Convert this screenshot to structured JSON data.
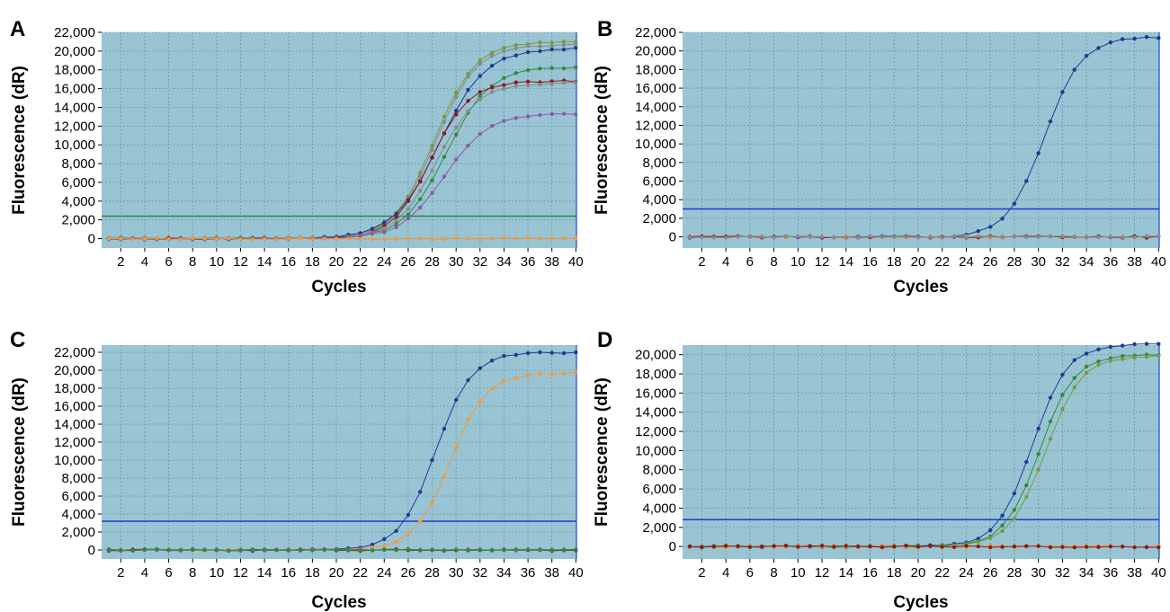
{
  "colors": {
    "plot_bg": "#99c4d4",
    "grid": "#5f8899",
    "blue": "#1f3a8f",
    "orange": "#f2993a",
    "dark_red": "#8b1a1a",
    "green": "#2e8b3a",
    "olive": "#7a9a3a",
    "purple": "#8a5aa8",
    "gray": "#8a8a8a",
    "threshold_green": "#2a8a3a",
    "threshold_blue": "#1f3acc",
    "right_border": "#3a6adc"
  },
  "chart_data": [
    {
      "panel": "A",
      "type": "line",
      "xlabel": "Cycles",
      "ylabel": "Fluorescence (dR)",
      "xlim": [
        1,
        40
      ],
      "ylim": [
        -1000,
        22000
      ],
      "x_ticks": [
        2,
        4,
        6,
        8,
        10,
        12,
        14,
        16,
        18,
        20,
        22,
        24,
        26,
        28,
        30,
        32,
        34,
        36,
        38,
        40
      ],
      "y_ticks": [
        "0",
        "2,000",
        "4,000",
        "6,000",
        "8,000",
        "10,000",
        "12,000",
        "14,000",
        "16,000",
        "18,000",
        "20,000",
        "22,000"
      ],
      "y_tick_values": [
        0,
        2000,
        4000,
        6000,
        8000,
        10000,
        12000,
        14000,
        16000,
        18000,
        20000,
        22000
      ],
      "threshold": 2400,
      "threshold_color": "threshold_green",
      "series": [
        {
          "color": "olive",
          "plateau": 21000,
          "midpoint": 28.2,
          "slope": 1.7
        },
        {
          "color": "gray",
          "plateau": 20700,
          "midpoint": 28.3,
          "slope": 1.7
        },
        {
          "color": "blue",
          "plateau": 20300,
          "midpoint": 28.6,
          "slope": 1.9
        },
        {
          "color": "green",
          "plateau": 18300,
          "midpoint": 29.2,
          "slope": 1.8
        },
        {
          "color": "dark_red",
          "plateau": 16800,
          "midpoint": 27.9,
          "slope": 1.6
        },
        {
          "color": "gray",
          "plateau": 16600,
          "midpoint": 28.4,
          "slope": 1.7
        },
        {
          "color": "purple",
          "plateau": 13300,
          "midpoint": 29.0,
          "slope": 1.8
        },
        {
          "color": "orange",
          "plateau": 0,
          "midpoint": 30,
          "slope": 2
        }
      ]
    },
    {
      "panel": "B",
      "type": "line",
      "xlabel": "Cycles",
      "ylabel": "Fluorescence (dR)",
      "xlim": [
        1,
        40
      ],
      "ylim": [
        -1200,
        22000
      ],
      "x_ticks": [
        2,
        4,
        6,
        8,
        10,
        12,
        14,
        16,
        18,
        20,
        22,
        24,
        26,
        28,
        30,
        32,
        34,
        36,
        38,
        40
      ],
      "y_ticks": [
        "0",
        "2,000",
        "4,000",
        "6,000",
        "8,000",
        "10,000",
        "12,000",
        "14,000",
        "16,000",
        "18,000",
        "20,000",
        "22,000"
      ],
      "y_tick_values": [
        0,
        2000,
        4000,
        6000,
        8000,
        10000,
        12000,
        14000,
        16000,
        18000,
        20000,
        22000
      ],
      "threshold": 3000,
      "threshold_color": "threshold_blue",
      "series": [
        {
          "color": "blue",
          "plateau": 21500,
          "midpoint": 30.5,
          "slope": 1.55
        },
        {
          "color": "orange",
          "plateau": 0,
          "midpoint": 30,
          "slope": 2
        },
        {
          "color": "dark_red",
          "plateau": 0,
          "midpoint": 30,
          "slope": 2
        },
        {
          "color": "gray",
          "plateau": 0,
          "midpoint": 30,
          "slope": 2
        }
      ]
    },
    {
      "panel": "C",
      "type": "line",
      "xlabel": "Cycles",
      "ylabel": "Fluorescence (dR)",
      "xlim": [
        1,
        40
      ],
      "ylim": [
        -1000,
        22800
      ],
      "x_ticks": [
        2,
        4,
        6,
        8,
        10,
        12,
        14,
        16,
        18,
        20,
        22,
        24,
        26,
        28,
        30,
        32,
        34,
        36,
        38,
        40
      ],
      "y_ticks": [
        "0",
        "2,000",
        "4,000",
        "6,000",
        "8,000",
        "10,000",
        "12,000",
        "14,000",
        "16,000",
        "18,000",
        "20,000",
        "22,000"
      ],
      "y_tick_values": [
        0,
        2000,
        4000,
        6000,
        8000,
        10000,
        12000,
        14000,
        16000,
        18000,
        20000,
        22000
      ],
      "threshold": 3200,
      "threshold_color": "threshold_blue",
      "series": [
        {
          "color": "blue",
          "plateau": 22000,
          "midpoint": 28.3,
          "slope": 1.5
        },
        {
          "color": "orange",
          "plateau": 19700,
          "midpoint": 29.5,
          "slope": 1.5
        },
        {
          "color": "dark_red",
          "plateau": 0,
          "midpoint": 30,
          "slope": 2
        },
        {
          "color": "purple",
          "plateau": 0,
          "midpoint": 30,
          "slope": 2
        },
        {
          "color": "green",
          "plateau": 0,
          "midpoint": 30,
          "slope": 2
        }
      ]
    },
    {
      "panel": "D",
      "type": "line",
      "xlabel": "Cycles",
      "ylabel": "Fluorescence (dR)",
      "xlim": [
        1,
        40
      ],
      "ylim": [
        -1300,
        21000
      ],
      "x_ticks": [
        2,
        4,
        6,
        8,
        10,
        12,
        14,
        16,
        18,
        20,
        22,
        24,
        26,
        28,
        30,
        32,
        34,
        36,
        38,
        40
      ],
      "y_ticks": [
        "0",
        "2,000",
        "4,000",
        "6,000",
        "8,000",
        "10,000",
        "12,000",
        "14,000",
        "16,000",
        "18,000",
        "20,000"
      ],
      "y_tick_values": [
        0,
        2000,
        4000,
        6000,
        8000,
        10000,
        12000,
        14000,
        16000,
        18000,
        20000
      ],
      "threshold": 2800,
      "threshold_color": "threshold_blue",
      "series": [
        {
          "color": "blue",
          "plateau": 21100,
          "midpoint": 29.5,
          "slope": 1.45
        },
        {
          "color": "green",
          "plateau": 20000,
          "midpoint": 30.1,
          "slope": 1.45
        },
        {
          "color": "olive",
          "plateau": 19900,
          "midpoint": 30.6,
          "slope": 1.5
        },
        {
          "color": "orange",
          "plateau": 0,
          "midpoint": 30,
          "slope": 2
        },
        {
          "color": "dark_red",
          "plateau": 0,
          "midpoint": 30,
          "slope": 2
        }
      ]
    }
  ]
}
